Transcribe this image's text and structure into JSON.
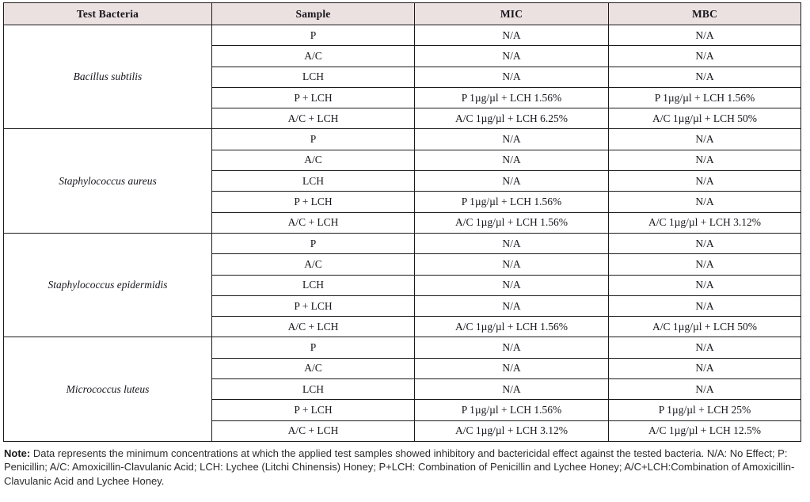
{
  "table": {
    "headers": [
      "Test Bacteria",
      "Sample",
      "MIC",
      "MBC"
    ],
    "groups": [
      {
        "bacteria": "Bacillus subtilis",
        "rows": [
          {
            "sample": "P",
            "mic": "N/A",
            "mbc": "N/A"
          },
          {
            "sample": "A/C",
            "mic": "N/A",
            "mbc": "N/A"
          },
          {
            "sample": "LCH",
            "mic": "N/A",
            "mbc": "N/A"
          },
          {
            "sample": "P + LCH",
            "mic": "P 1µg/µl + LCH 1.56%",
            "mbc": "P 1µg/µl + LCH 1.56%"
          },
          {
            "sample": "A/C + LCH",
            "mic": "A/C 1µg/µl + LCH 6.25%",
            "mbc": "A/C 1µg/µl + LCH 50%"
          }
        ]
      },
      {
        "bacteria": "Staphylococcus aureus",
        "rows": [
          {
            "sample": "P",
            "mic": "N/A",
            "mbc": "N/A"
          },
          {
            "sample": "A/C",
            "mic": "N/A",
            "mbc": "N/A"
          },
          {
            "sample": "LCH",
            "mic": "N/A",
            "mbc": "N/A"
          },
          {
            "sample": "P + LCH",
            "mic": "P 1µg/µl + LCH 1.56%",
            "mbc": "N/A"
          },
          {
            "sample": "A/C + LCH",
            "mic": "A/C 1µg/µl + LCH 1.56%",
            "mbc": "A/C 1µg/µl + LCH 3.12%"
          }
        ]
      },
      {
        "bacteria": "Staphylococcus epidermidis",
        "rows": [
          {
            "sample": "P",
            "mic": "N/A",
            "mbc": "N/A"
          },
          {
            "sample": "A/C",
            "mic": "N/A",
            "mbc": "N/A"
          },
          {
            "sample": "LCH",
            "mic": "N/A",
            "mbc": "N/A"
          },
          {
            "sample": "P + LCH",
            "mic": "N/A",
            "mbc": "N/A"
          },
          {
            "sample": "A/C + LCH",
            "mic": "A/C 1µg/µl + LCH 1.56%",
            "mbc": "A/C 1µg/µl + LCH 50%"
          }
        ]
      },
      {
        "bacteria": "Micrococcus luteus",
        "rows": [
          {
            "sample": "P",
            "mic": "N/A",
            "mbc": "N/A"
          },
          {
            "sample": "A/C",
            "mic": "N/A",
            "mbc": "N/A"
          },
          {
            "sample": "LCH",
            "mic": "N/A",
            "mbc": "N/A"
          },
          {
            "sample": "P + LCH",
            "mic": "P 1µg/µl + LCH 1.56%",
            "mbc": "P 1µg/µl + LCH 25%"
          },
          {
            "sample": "A/C + LCH",
            "mic": "A/C 1µg/µl + LCH 3.12%",
            "mbc": "A/C 1µg/µl + LCH 12.5%"
          }
        ]
      }
    ]
  },
  "note": {
    "label": "Note:",
    "text": " Data represents the minimum concentrations at which the applied test samples showed inhibitory and bactericidal effect against the tested bacteria. N/A: No Effect; P: Penicillin; A/C: Amoxicillin-Clavulanic Acid; LCH: Lychee (Litchi Chinensis) Honey; P+LCH: Combination of Penicillin and Lychee Honey; A/C+LCH:Combination of Amoxicillin-Clavulanic Acid and Lychee Honey."
  },
  "colors": {
    "header_bg": "#ece1e1",
    "border": "#1b1b1b",
    "table_text": "#17161d",
    "note_text": "#2b2b2b"
  }
}
